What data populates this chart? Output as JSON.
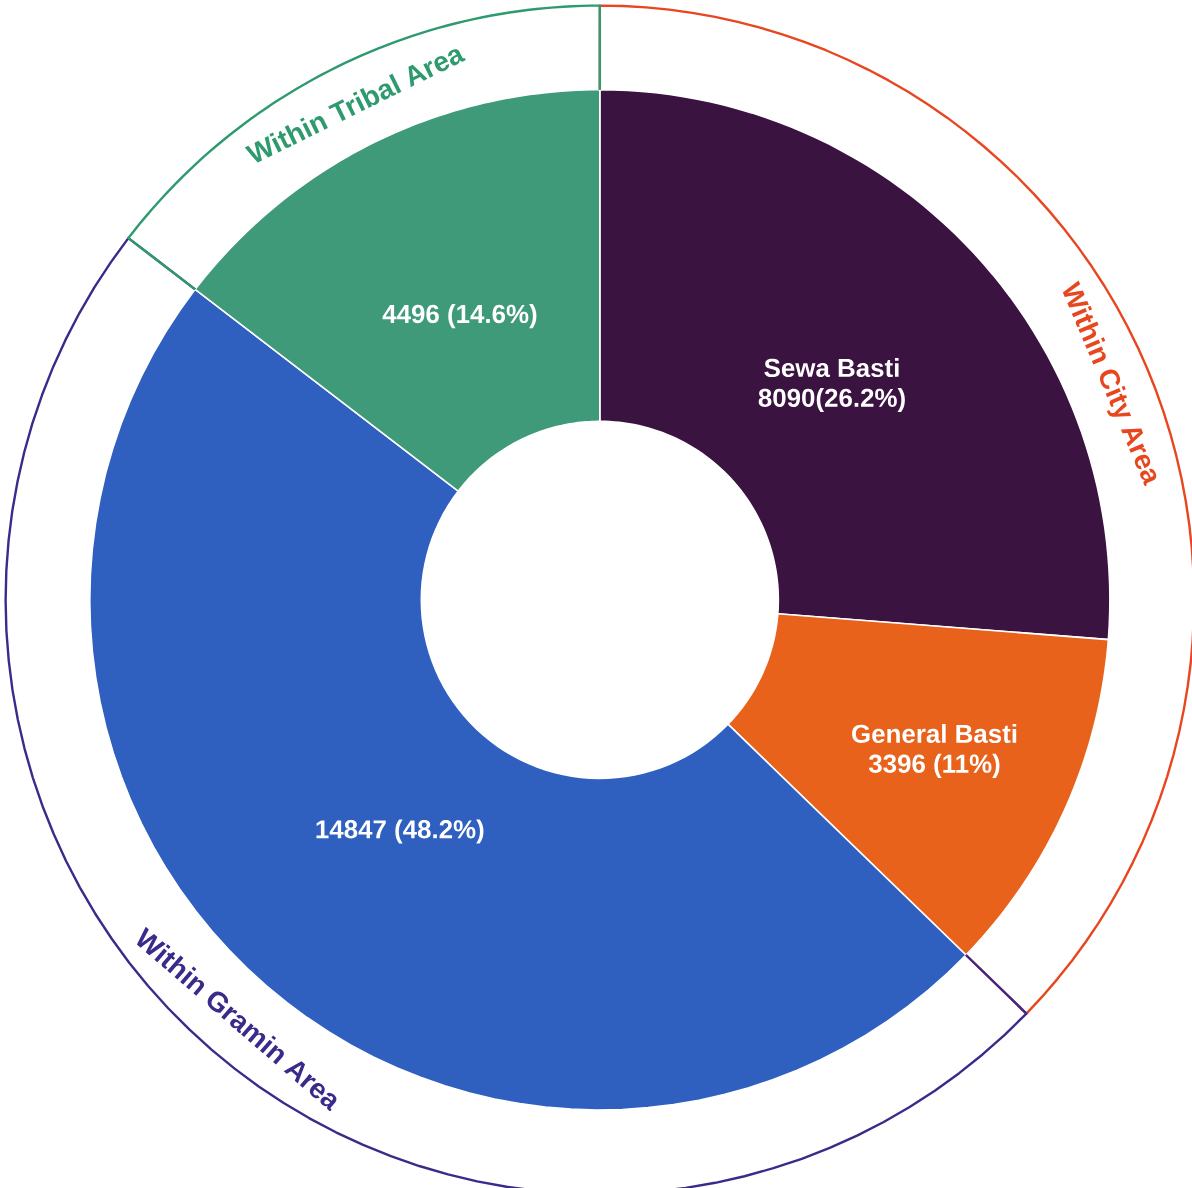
{
  "chart_data": {
    "type": "donut",
    "categories": [
      "Sewa Basti",
      "General Basti",
      null,
      null
    ],
    "values": [
      8090,
      3396,
      14847,
      4496
    ],
    "value_labels": [
      "8090(26.2%)",
      "3396 (11%)",
      "14847 (48.2%)",
      "4496 (14.6%)"
    ],
    "colors": [
      "#3a1340",
      "#e8621c",
      "#2f5fbf",
      "#3f9a7a"
    ],
    "annotations": [
      "Within City Area",
      "Within Gramin Area",
      "Within Tribal Area"
    ]
  }
}
